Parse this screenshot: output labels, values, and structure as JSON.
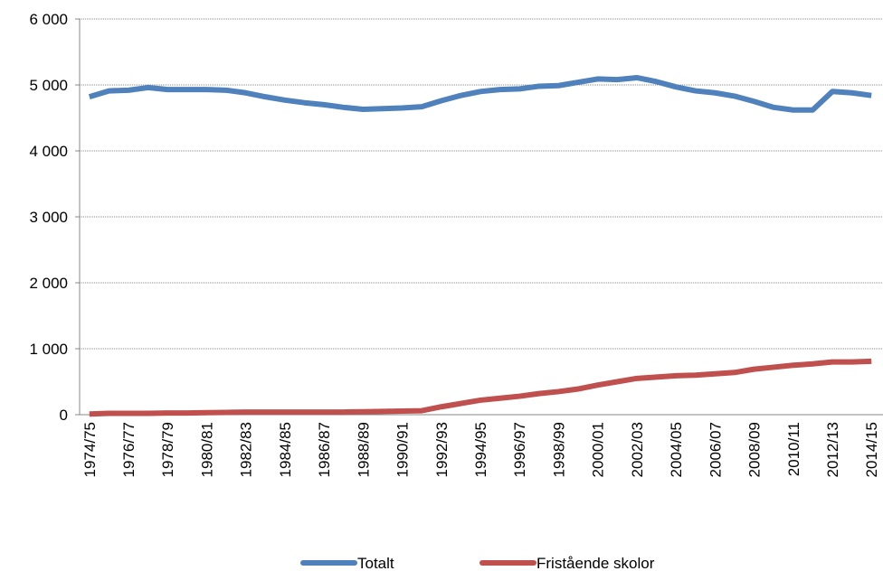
{
  "chart_data": {
    "type": "line",
    "categories": [
      "1974/75",
      null,
      "1976/77",
      null,
      "1978/79",
      null,
      "1980/81",
      null,
      "1982/83",
      null,
      "1984/85",
      null,
      "1986/87",
      null,
      "1988/89",
      null,
      "1990/91",
      null,
      "1992/93",
      null,
      "1994/95",
      null,
      "1996/97",
      null,
      "1998/99",
      null,
      "2000/01",
      null,
      "2002/03",
      null,
      "2004/05",
      null,
      "2006/07",
      null,
      "2008/09",
      null,
      "2010/11",
      null,
      "2012/13",
      null,
      "2014/15"
    ],
    "series": [
      {
        "name": "Totalt",
        "color": "#4f81bd",
        "values": [
          4820,
          4910,
          4920,
          4960,
          4930,
          4930,
          4930,
          4920,
          4880,
          4820,
          4770,
          4730,
          4700,
          4660,
          4630,
          4640,
          4650,
          4670,
          4760,
          4840,
          4900,
          4930,
          4940,
          4980,
          4990,
          5040,
          5090,
          5080,
          5110,
          5050,
          4970,
          4910,
          4880,
          4830,
          4750,
          4660,
          4620,
          4620,
          4900,
          4880,
          4840
        ]
      },
      {
        "name": "Fristående skolor",
        "color": "#c0504d",
        "values": [
          10,
          20,
          20,
          20,
          25,
          25,
          30,
          35,
          40,
          40,
          40,
          40,
          40,
          40,
          45,
          50,
          55,
          60,
          120,
          170,
          220,
          250,
          280,
          320,
          350,
          390,
          450,
          500,
          550,
          570,
          590,
          600,
          620,
          640,
          690,
          720,
          750,
          770,
          800,
          800,
          810
        ]
      }
    ],
    "ylim": [
      0,
      6000
    ],
    "yticks": [
      {
        "value": 0,
        "label": "0"
      },
      {
        "value": 1000,
        "label": "1 000"
      },
      {
        "value": 2000,
        "label": "2 000"
      },
      {
        "value": 3000,
        "label": "3 000"
      },
      {
        "value": 4000,
        "label": "4 000"
      },
      {
        "value": 5000,
        "label": "5 000"
      },
      {
        "value": 6000,
        "label": "6 000"
      }
    ],
    "grid": true,
    "legend": "bottom"
  }
}
